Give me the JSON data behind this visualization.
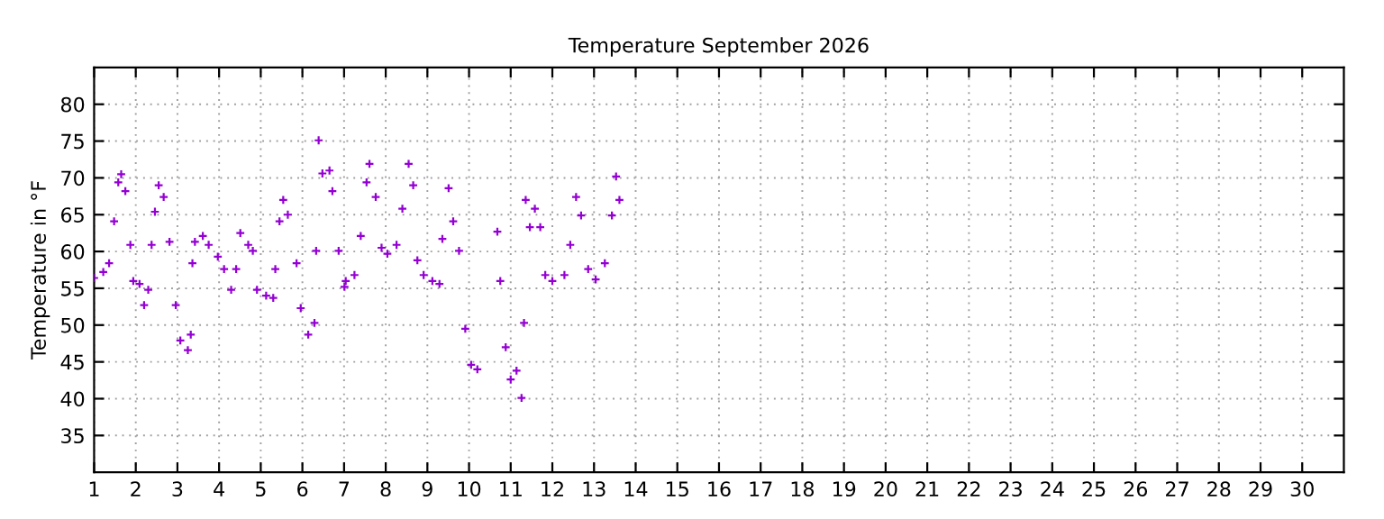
{
  "chart_data": {
    "type": "scatter",
    "title": "Temperature September 2026",
    "ylabel": "Temperature in °F",
    "x": [
      1.0,
      1.22,
      1.36,
      1.48,
      1.58,
      1.65,
      1.75,
      1.87,
      1.94,
      2.09,
      2.2,
      2.3,
      2.38,
      2.46,
      2.55,
      2.67,
      2.81,
      2.96,
      3.07,
      3.25,
      3.32,
      3.36,
      3.42,
      3.61,
      3.75,
      3.97,
      4.12,
      4.29,
      4.41,
      4.51,
      4.7,
      4.81,
      4.91,
      5.13,
      5.3,
      5.35,
      5.45,
      5.54,
      5.65,
      5.86,
      5.96,
      6.14,
      6.29,
      6.33,
      6.39,
      6.48,
      6.65,
      6.72,
      6.87,
      7.01,
      7.04,
      7.25,
      7.4,
      7.54,
      7.61,
      7.76,
      7.9,
      8.04,
      8.26,
      8.4,
      8.55,
      8.66,
      8.76,
      8.91,
      9.12,
      9.29,
      9.36,
      9.51,
      9.62,
      9.76,
      9.91,
      10.05,
      10.2,
      10.68,
      10.75,
      10.88,
      11.0,
      11.14,
      11.26,
      11.32,
      11.36,
      11.46,
      11.58,
      11.71,
      11.83,
      12.0,
      12.29,
      12.43,
      12.57,
      12.69,
      12.86,
      13.04,
      13.26,
      13.43,
      13.53,
      13.61
    ],
    "series": [
      {
        "color": "#9400d3",
        "values": [
          56.4,
          57.2,
          58.4,
          64.1,
          69.4,
          70.5,
          68.2,
          60.9,
          56.0,
          55.6,
          52.7,
          54.8,
          60.9,
          65.4,
          69.0,
          67.4,
          61.3,
          52.7,
          47.9,
          46.6,
          48.7,
          58.4,
          61.3,
          62.1,
          60.9,
          59.3,
          57.6,
          54.8,
          57.6,
          62.5,
          60.9,
          60.1,
          54.8,
          54.0,
          53.7,
          57.6,
          64.1,
          67.0,
          65.0,
          58.4,
          52.3,
          48.7,
          50.3,
          60.1,
          75.1,
          70.6,
          71.0,
          68.2,
          60.1,
          55.2,
          56.0,
          56.8,
          62.1,
          69.4,
          71.9,
          67.4,
          60.5,
          59.7,
          60.9,
          65.8,
          71.9,
          69.0,
          58.8,
          56.8,
          56.0,
          55.6,
          61.7,
          68.6,
          64.1,
          60.1,
          49.5,
          44.6,
          44.0,
          62.7,
          56.0,
          47.0,
          42.6,
          43.8,
          40.1,
          50.3,
          67.0,
          63.3,
          65.8,
          63.3,
          56.8,
          56.0,
          56.8,
          60.9,
          67.4,
          64.9,
          57.6,
          56.2,
          58.4,
          64.9,
          70.2,
          67.0
        ]
      }
    ],
    "xlim": [
      1,
      31
    ],
    "xticks": [
      1,
      2,
      3,
      4,
      5,
      6,
      7,
      8,
      9,
      10,
      11,
      12,
      13,
      14,
      15,
      16,
      17,
      18,
      19,
      20,
      21,
      22,
      23,
      24,
      25,
      26,
      27,
      28,
      29,
      30
    ],
    "ylim": [
      30,
      85
    ],
    "yticks": [
      35,
      40,
      45,
      50,
      55,
      60,
      65,
      70,
      75,
      80
    ],
    "grid": true,
    "marker": "cross"
  }
}
